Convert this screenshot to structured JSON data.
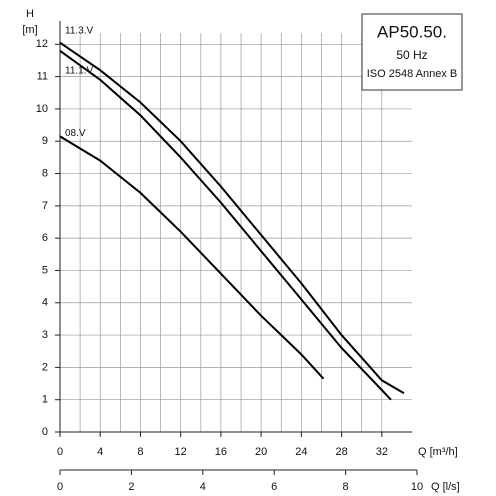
{
  "chart_data": {
    "type": "line",
    "y_label": "H",
    "y_unit": "[m]",
    "x_label": "Q [m³/h]",
    "x2_label": "Q [l/s]",
    "xlim": [
      0,
      35
    ],
    "xticks": [
      0,
      4,
      8,
      12,
      16,
      20,
      24,
      28,
      32
    ],
    "ylim": [
      0,
      12.35
    ],
    "yticks": [
      0,
      1,
      2,
      3,
      4,
      5,
      6,
      7,
      8,
      9,
      10,
      11,
      12
    ],
    "x2lim": [
      0,
      10
    ],
    "x2ticks": [
      0,
      2,
      4,
      6,
      8,
      10
    ],
    "grid": true,
    "legend_box": {
      "model": "AP50.50.",
      "frequency": "50 Hz",
      "standard": "ISO 2548 Annex B"
    },
    "series": [
      {
        "name": "11.3.V",
        "color": "#000000",
        "x": [
          0,
          4,
          8,
          12,
          16,
          20,
          24,
          28,
          32,
          34.2
        ],
        "values": [
          12.05,
          11.2,
          10.2,
          9.0,
          7.6,
          6.1,
          4.6,
          3.0,
          1.6,
          1.2
        ]
      },
      {
        "name": "11.1.V",
        "color": "#000000",
        "x": [
          0,
          4,
          8,
          12,
          16,
          20,
          24,
          28,
          32,
          32.9
        ],
        "values": [
          11.8,
          10.9,
          9.8,
          8.5,
          7.1,
          5.6,
          4.1,
          2.6,
          1.3,
          1.0
        ]
      },
      {
        "name": "08.V",
        "color": "#000000",
        "x": [
          0,
          4,
          8,
          12,
          16,
          20,
          24,
          26.2
        ],
        "values": [
          9.15,
          8.4,
          7.4,
          6.2,
          4.9,
          3.6,
          2.4,
          1.65
        ]
      }
    ]
  }
}
